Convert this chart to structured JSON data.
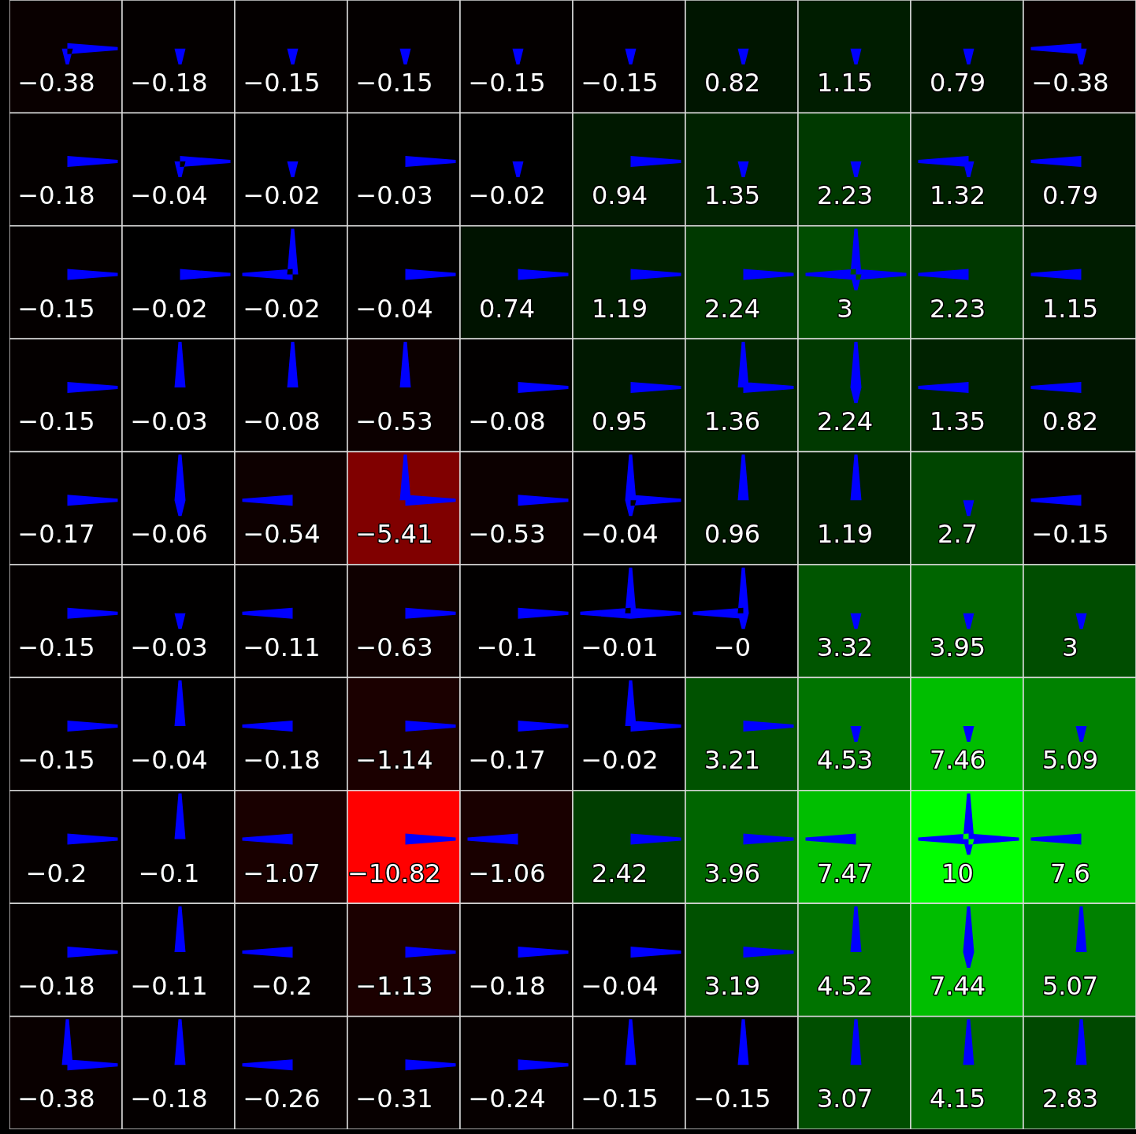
{
  "chart_data": {
    "type": "heatmap",
    "categories": [
      null,
      null,
      null,
      null,
      null,
      null,
      null,
      null,
      null,
      null
    ],
    "y_categories": [
      null,
      null,
      null,
      null,
      null,
      null,
      null,
      null,
      null,
      null
    ],
    "cells": [
      [
        -0.38,
        -0.18,
        -0.15,
        -0.15,
        -0.15,
        -0.15,
        0.82,
        1.15,
        0.79,
        -0.38
      ],
      [
        -0.18,
        -0.04,
        -0.02,
        -0.03,
        -0.02,
        0.94,
        1.35,
        2.23,
        1.32,
        0.79
      ],
      [
        -0.15,
        -0.02,
        -0.02,
        -0.04,
        0.74,
        1.19,
        2.24,
        3,
        2.23,
        1.15
      ],
      [
        -0.15,
        -0.03,
        -0.08,
        -0.53,
        -0.08,
        0.95,
        1.36,
        2.24,
        1.35,
        0.82
      ],
      [
        -0.17,
        -0.06,
        -0.54,
        -5.41,
        -0.53,
        -0.04,
        0.96,
        1.19,
        2.7,
        -0.15
      ],
      [
        -0.15,
        -0.03,
        -0.11,
        -0.63,
        -0.1,
        -0.01,
        0,
        3.32,
        3.95,
        3
      ],
      [
        -0.15,
        -0.04,
        -0.18,
        -1.14,
        -0.17,
        -0.02,
        3.21,
        4.53,
        7.46,
        5.09
      ],
      [
        -0.2,
        -0.1,
        -1.07,
        -10.82,
        -1.06,
        2.42,
        3.96,
        7.47,
        10,
        7.6
      ],
      [
        -0.18,
        -0.11,
        -0.2,
        -1.13,
        -0.18,
        -0.04,
        3.19,
        4.52,
        7.44,
        5.07
      ],
      [
        -0.38,
        -0.18,
        -0.26,
        -0.31,
        -0.24,
        -0.15,
        -0.15,
        3.07,
        4.15,
        2.83
      ]
    ],
    "cell_labels": [
      [
        "−0.38",
        "−0.18",
        "−0.15",
        "−0.15",
        "−0.15",
        "−0.15",
        "0.82",
        "1.15",
        "0.79",
        "−0.38"
      ],
      [
        "−0.18",
        "−0.04",
        "−0.02",
        "−0.03",
        "−0.02",
        "0.94",
        "1.35",
        "2.23",
        "1.32",
        "0.79"
      ],
      [
        "−0.15",
        "−0.02",
        "−0.02",
        "−0.04",
        "0.74",
        "1.19",
        "2.24",
        "3",
        "2.23",
        "1.15"
      ],
      [
        "−0.15",
        "−0.03",
        "−0.08",
        "−0.53",
        "−0.08",
        "0.95",
        "1.36",
        "2.24",
        "1.35",
        "0.82"
      ],
      [
        "−0.17",
        "−0.06",
        "−0.54",
        "−5.41",
        "−0.53",
        "−0.04",
        "0.96",
        "1.19",
        "2.7",
        "−0.15"
      ],
      [
        "−0.15",
        "−0.03",
        "−0.11",
        "−0.63",
        "−0.1",
        "−0.01",
        "−0",
        "3.32",
        "3.95",
        "3"
      ],
      [
        "−0.15",
        "−0.04",
        "−0.18",
        "−1.14",
        "−0.17",
        "−0.02",
        "3.21",
        "4.53",
        "7.46",
        "5.09"
      ],
      [
        "−0.2",
        "−0.1",
        "−1.07",
        "−10.82",
        "−1.06",
        "2.42",
        "3.96",
        "7.47",
        "10",
        "7.6"
      ],
      [
        "−0.18",
        "−0.11",
        "−0.2",
        "−1.13",
        "−0.18",
        "−0.04",
        "3.19",
        "4.52",
        "7.44",
        "5.07"
      ],
      [
        "−0.38",
        "−0.18",
        "−0.26",
        "−0.31",
        "−0.24",
        "−0.15",
        "−0.15",
        "3.07",
        "4.15",
        "2.83"
      ]
    ]
  }
}
